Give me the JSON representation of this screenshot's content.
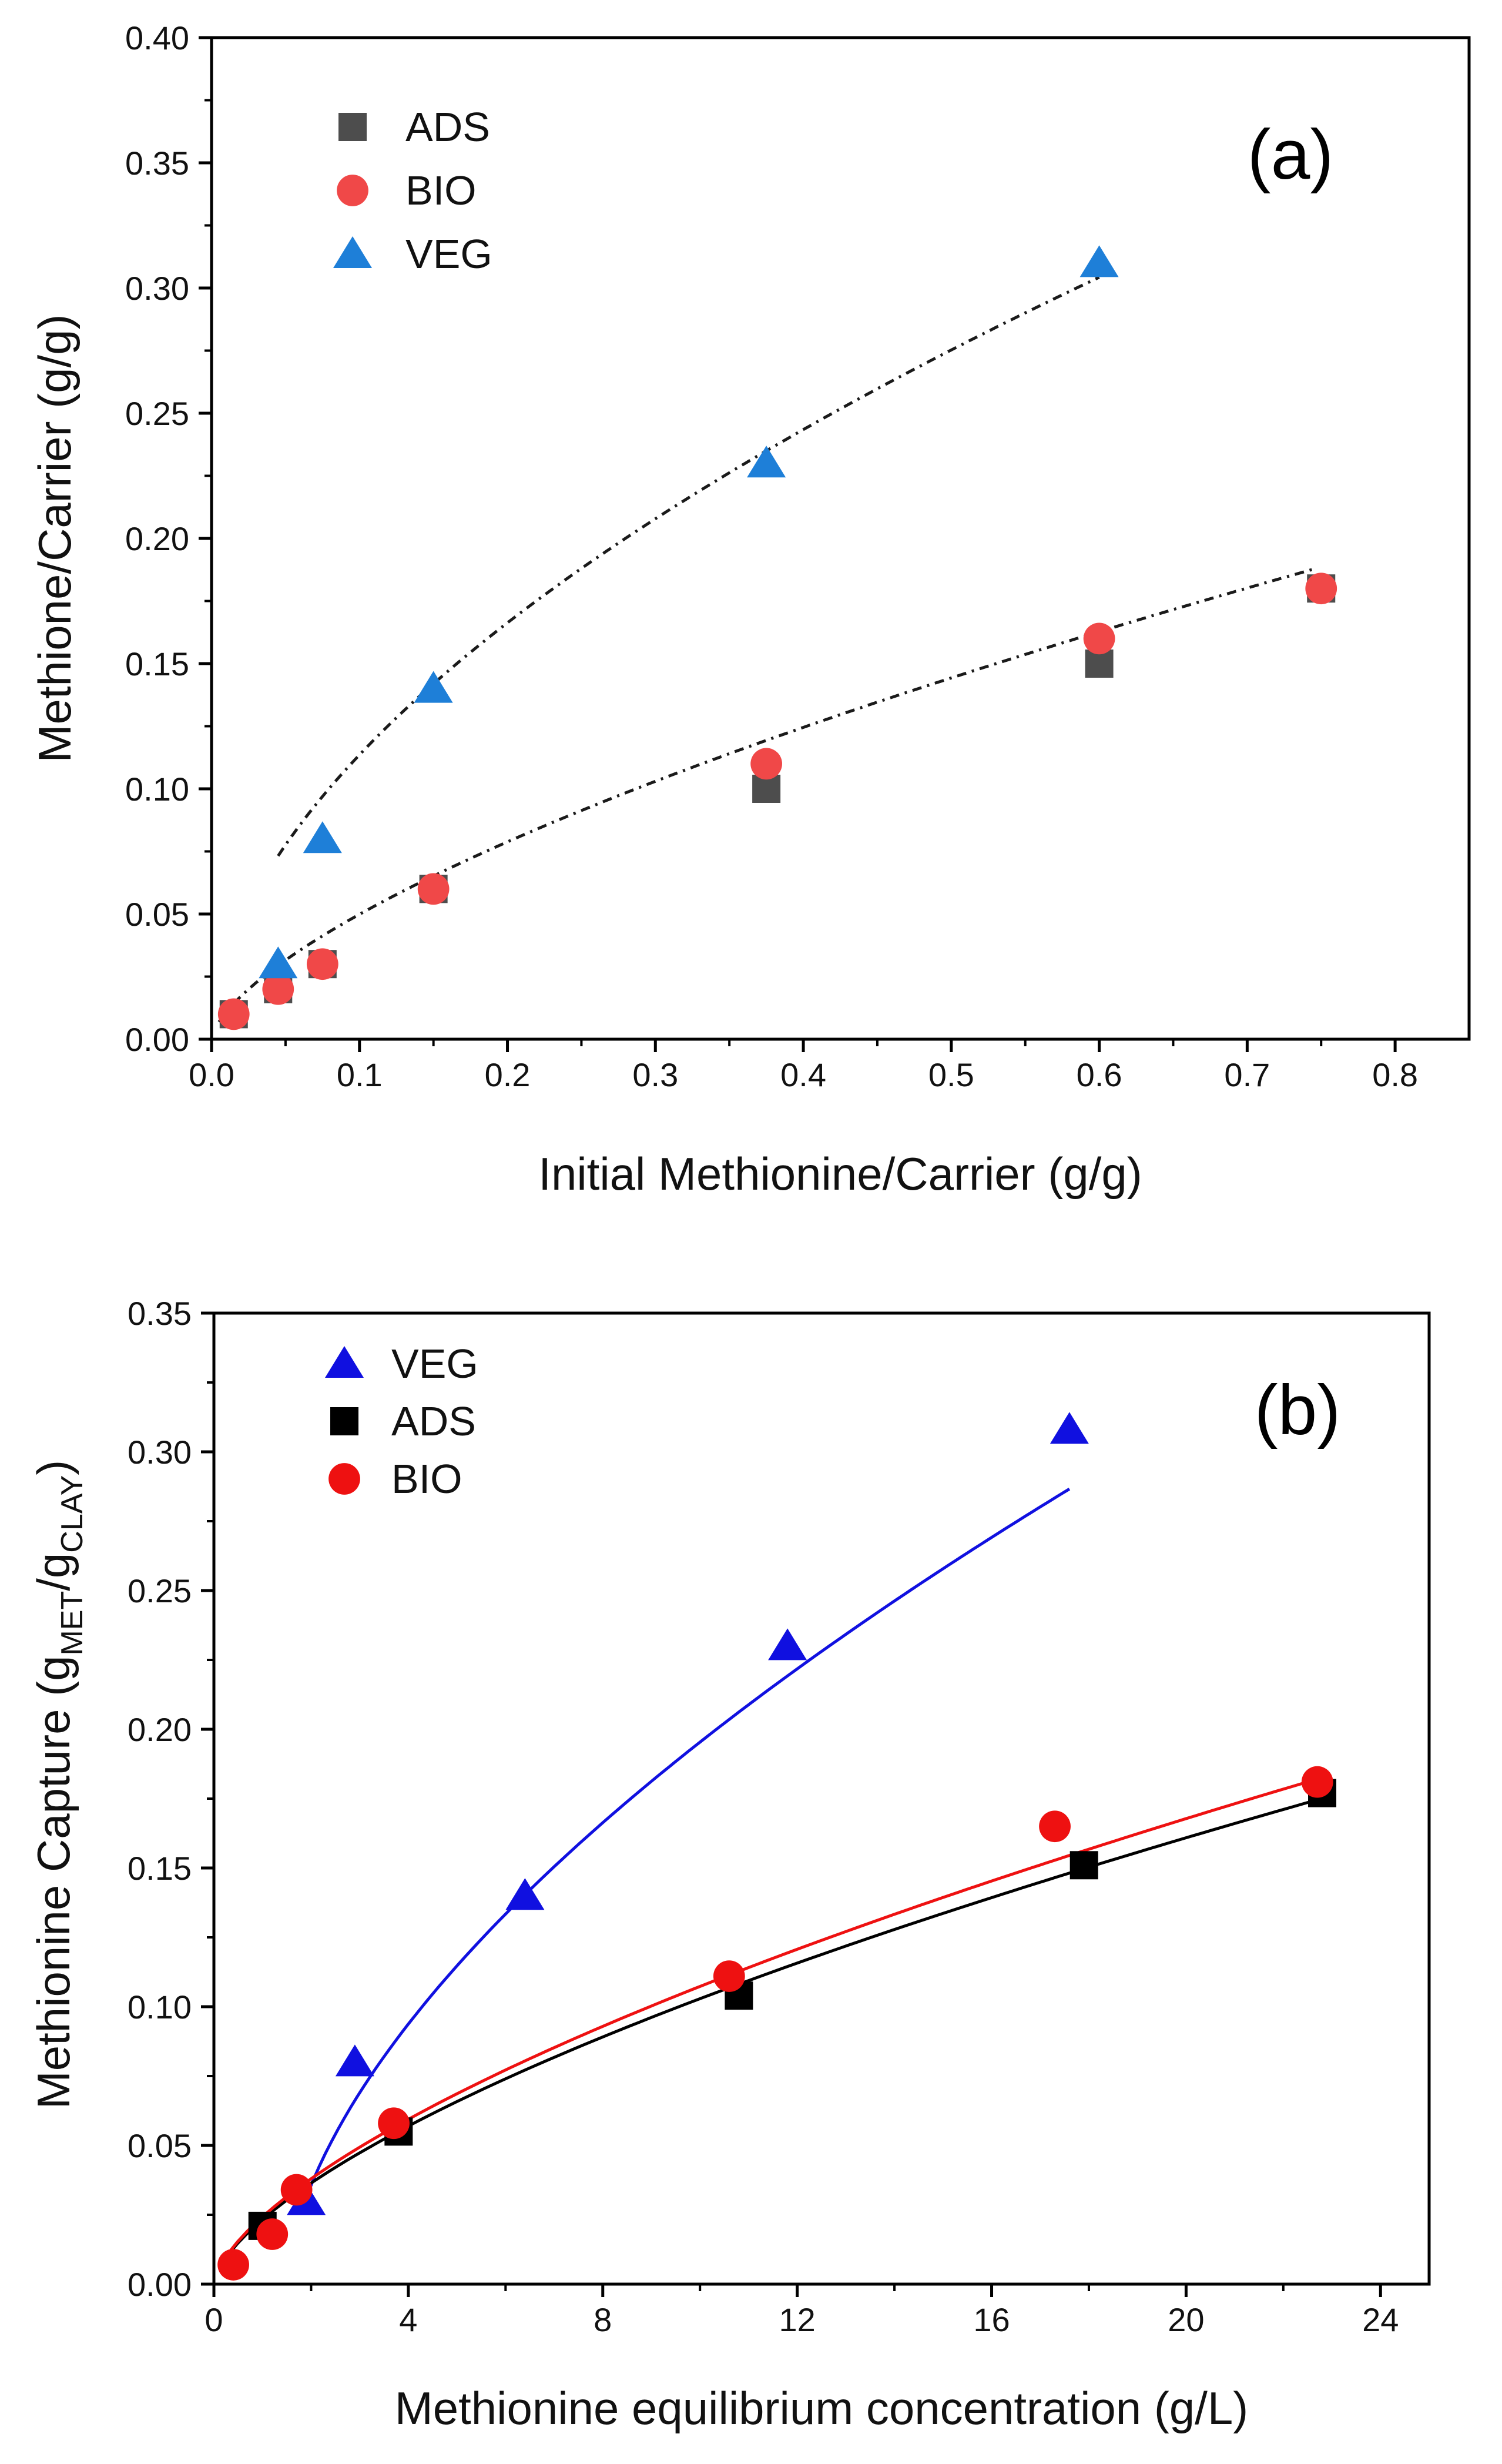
{
  "chart_data": [
    {
      "id": "a",
      "type": "scatter",
      "panel_label": "(a)",
      "xlabel": "Initial Methionine/Carrier (g/g)",
      "ylabel": "Methione/Carrier (g/g)",
      "xlim": [
        0,
        0.85
      ],
      "ylim": [
        0,
        0.4
      ],
      "xticks": [
        0.0,
        0.1,
        0.2,
        0.3,
        0.4,
        0.5,
        0.6,
        0.7,
        0.8
      ],
      "xtick_labels": [
        "0.0",
        "0.1",
        "0.2",
        "0.3",
        "0.4",
        "0.5",
        "0.6",
        "0.7",
        "0.8"
      ],
      "yticks": [
        0.0,
        0.05,
        0.1,
        0.15,
        0.2,
        0.25,
        0.3,
        0.35,
        0.4
      ],
      "ytick_labels": [
        "0.00",
        "0.05",
        "0.10",
        "0.15",
        "0.20",
        "0.25",
        "0.30",
        "0.35",
        "0.40"
      ],
      "legend_position": "top-left",
      "series": [
        {
          "name": "ADS",
          "marker": "square",
          "color": "#4d4d4d",
          "x": [
            0.015,
            0.045,
            0.075,
            0.15,
            0.375,
            0.6,
            0.75
          ],
          "y": [
            0.01,
            0.02,
            0.03,
            0.06,
            0.1,
            0.15,
            0.18
          ]
        },
        {
          "name": "BIO",
          "marker": "circle",
          "color": "#f04848",
          "x": [
            0.015,
            0.045,
            0.075,
            0.15,
            0.375,
            0.6,
            0.75
          ],
          "y": [
            0.01,
            0.02,
            0.03,
            0.06,
            0.11,
            0.16,
            0.18
          ]
        },
        {
          "name": "VEG",
          "marker": "triangle",
          "color": "#1e7fd8",
          "x": [
            0.045,
            0.075,
            0.15,
            0.375,
            0.6
          ],
          "y": [
            0.03,
            0.08,
            0.14,
            0.23,
            0.31
          ]
        }
      ],
      "fits": [
        {
          "name": "VEG fit",
          "style": "dash-dot",
          "color": "#1a1a1a",
          "model": "power",
          "a": 0.403,
          "b": 0.55,
          "x_range": [
            0.045,
            0.6
          ]
        },
        {
          "name": "ADS/BIO fit",
          "style": "dash-dot",
          "color": "#1a1a1a",
          "model": "power",
          "a": 0.228,
          "b": 0.66,
          "x_range": [
            0.005,
            0.745
          ]
        }
      ]
    },
    {
      "id": "b",
      "type": "scatter",
      "panel_label": "(b)",
      "xlabel": "Methionine equilibrium concentration (g/L)",
      "ylabel": "Methionine Capture (g",
      "ylabel_sub1": "MET",
      "ylabel_mid": "/g",
      "ylabel_sub2": "CLAY",
      "ylabel_end": ")",
      "xlim": [
        0,
        25
      ],
      "ylim": [
        0,
        0.35
      ],
      "xticks": [
        0,
        4,
        8,
        12,
        16,
        20,
        24
      ],
      "xtick_labels": [
        "0",
        "4",
        "8",
        "12",
        "16",
        "20",
        "24"
      ],
      "yticks": [
        0.0,
        0.05,
        0.1,
        0.15,
        0.2,
        0.25,
        0.3,
        0.35
      ],
      "ytick_labels": [
        "0.00",
        "0.05",
        "0.10",
        "0.15",
        "0.20",
        "0.25",
        "0.30",
        "0.35"
      ],
      "legend_position": "top-left",
      "series": [
        {
          "name": "VEG",
          "marker": "triangle",
          "color": "#1010e0",
          "x": [
            1.9,
            2.9,
            6.4,
            11.8,
            17.6
          ],
          "y": [
            0.03,
            0.08,
            0.14,
            0.23,
            0.308
          ]
        },
        {
          "name": "ADS",
          "marker": "square",
          "color": "#000000",
          "x": [
            1.0,
            3.8,
            10.8,
            17.9,
            22.8
          ],
          "y": [
            0.021,
            0.055,
            0.104,
            0.151,
            0.177
          ]
        },
        {
          "name": "BIO",
          "marker": "circle",
          "color": "#ee1111",
          "x": [
            0.4,
            1.2,
            1.7,
            3.7,
            10.6,
            17.3,
            22.7
          ],
          "y": [
            0.007,
            0.018,
            0.034,
            0.058,
            0.111,
            0.165,
            0.181
          ]
        }
      ],
      "fits": [
        {
          "name": "VEG fit",
          "style": "solid",
          "color": "#1010e0",
          "model": "shifted-power",
          "a": 0.0541,
          "b": 0.6,
          "x0": 1.5,
          "x_range": [
            1.9,
            17.6
          ]
        },
        {
          "name": "ADS fit",
          "style": "solid",
          "color": "#000000",
          "model": "power",
          "a": 0.0233,
          "b": 0.645,
          "x_range": [
            0.3,
            22.8
          ]
        },
        {
          "name": "BIO fit",
          "style": "solid",
          "color": "#ee1111",
          "model": "power",
          "a": 0.0243,
          "b": 0.645,
          "x_range": [
            0.3,
            22.8
          ]
        }
      ]
    }
  ]
}
